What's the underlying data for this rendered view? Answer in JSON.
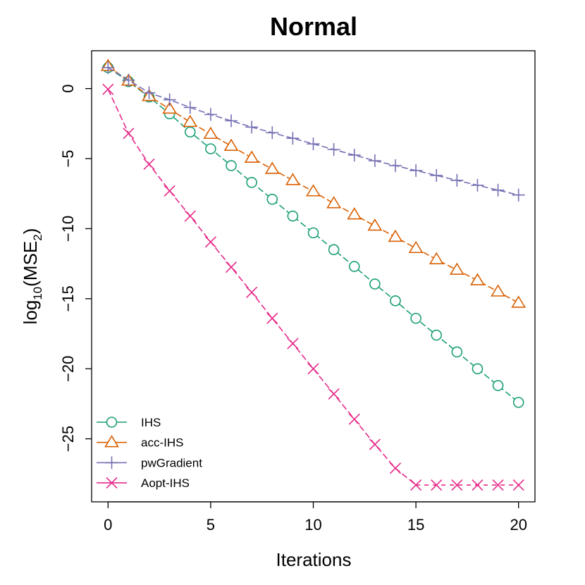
{
  "chart_data": {
    "type": "line",
    "title": "Normal",
    "xlabel": "Iterations",
    "ylabel_base": "log",
    "ylabel_sub": "10",
    "ylabel_arg": "(MSE",
    "ylabel_argsub": "2",
    "ylabel_close": ")",
    "xlim": [
      -0.8,
      20.8
    ],
    "ylim": [
      -29.5,
      2.7
    ],
    "x_ticks": [
      0,
      5,
      10,
      15,
      20
    ],
    "x_tick_labels": [
      "0",
      "5",
      "10",
      "15",
      "20"
    ],
    "y_ticks": [
      0,
      -5,
      -10,
      -15,
      -20,
      -25
    ],
    "y_tick_labels": [
      "0",
      "−5",
      "−10",
      "−15",
      "−20",
      "−25"
    ],
    "x": [
      0,
      1,
      2,
      3,
      4,
      5,
      6,
      7,
      8,
      9,
      10,
      11,
      12,
      13,
      14,
      15,
      16,
      17,
      18,
      19,
      20
    ],
    "legend_position": "bottom-left",
    "series": [
      {
        "name": "IHS",
        "color": "#1b9e77",
        "marker": "circle",
        "values": [
          1.5,
          0.5,
          -0.6,
          -1.8,
          -3.1,
          -4.3,
          -5.5,
          -6.7,
          -7.9,
          -9.1,
          -10.3,
          -11.5,
          -12.7,
          -13.95,
          -15.15,
          -16.4,
          -17.6,
          -18.8,
          -20.0,
          -21.2,
          -22.4
        ]
      },
      {
        "name": "acc-IHS",
        "color": "#d95f02",
        "marker": "triangle",
        "values": [
          1.6,
          0.55,
          -0.55,
          -1.45,
          -2.4,
          -3.25,
          -4.1,
          -4.95,
          -5.75,
          -6.55,
          -7.35,
          -8.2,
          -9.0,
          -9.8,
          -10.6,
          -11.4,
          -12.2,
          -12.95,
          -13.7,
          -14.5,
          -15.3
        ]
      },
      {
        "name": "pwGradient",
        "color": "#7570b3",
        "marker": "plus",
        "values": [
          1.5,
          0.6,
          -0.3,
          -0.8,
          -1.35,
          -1.85,
          -2.3,
          -2.75,
          -3.15,
          -3.55,
          -3.95,
          -4.35,
          -4.75,
          -5.15,
          -5.5,
          -5.85,
          -6.2,
          -6.55,
          -6.9,
          -7.25,
          -7.6
        ]
      },
      {
        "name": "Aopt-IHS",
        "color": "#e7298a",
        "marker": "x",
        "values": [
          -0.05,
          -3.2,
          -5.4,
          -7.3,
          -9.1,
          -10.95,
          -12.75,
          -14.55,
          -16.4,
          -18.2,
          -20.0,
          -21.8,
          -23.6,
          -25.4,
          -27.1,
          -28.3,
          -28.3,
          -28.3,
          -28.3,
          -28.3,
          -28.3
        ],
        "dashed_from_index": 15
      }
    ]
  }
}
